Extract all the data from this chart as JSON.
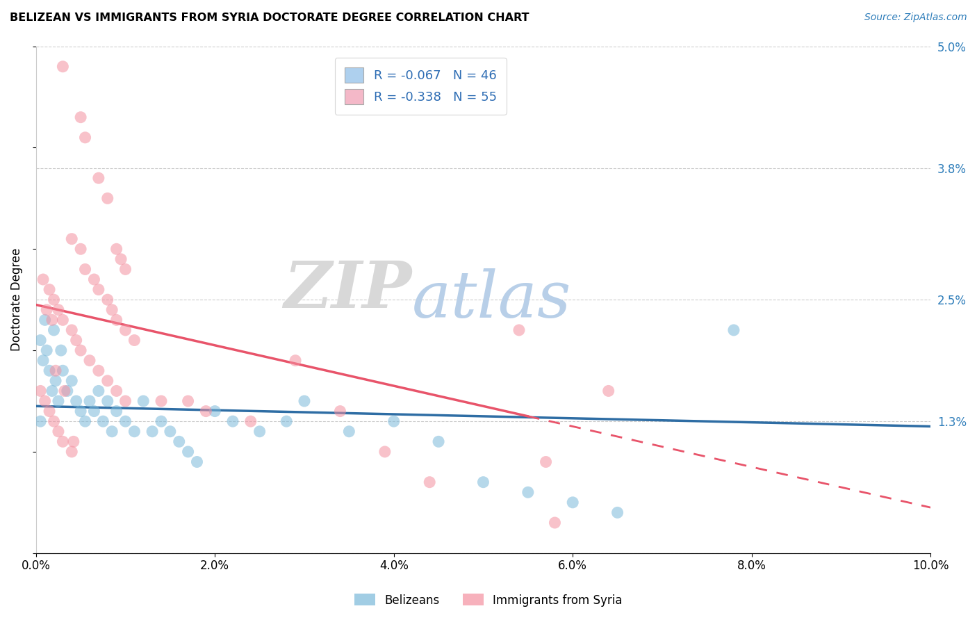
{
  "title": "BELIZEAN VS IMMIGRANTS FROM SYRIA DOCTORATE DEGREE CORRELATION CHART",
  "source": "Source: ZipAtlas.com",
  "ylabel": "Doctorate Degree",
  "xlim": [
    0.0,
    10.0
  ],
  "ylim": [
    0.0,
    5.0
  ],
  "ytick_vals": [
    0.0,
    1.3,
    2.5,
    3.8,
    5.0
  ],
  "ytick_labels": [
    "",
    "1.3%",
    "2.5%",
    "3.8%",
    "5.0%"
  ],
  "xtick_vals": [
    0,
    2,
    4,
    6,
    8,
    10
  ],
  "xtick_labels": [
    "0.0%",
    "2.0%",
    "4.0%",
    "6.0%",
    "8.0%",
    "10.0%"
  ],
  "legend_entries": [
    {
      "label_r": "R = -0.067",
      "label_n": "N = 46",
      "color": "#aed0ee"
    },
    {
      "label_r": "R = -0.338",
      "label_n": "N = 55",
      "color": "#f4b8c8"
    }
  ],
  "belizean_color": "#7ab8d9",
  "syria_color": "#f490a0",
  "trendline_belizean_color": "#2e6da4",
  "trendline_syria_color": "#e8546a",
  "watermark_zip": "ZIP",
  "watermark_atlas": "atlas",
  "belizean_N": 46,
  "syria_N": 55,
  "belizean_points": [
    [
      0.05,
      2.1
    ],
    [
      0.08,
      1.9
    ],
    [
      0.1,
      2.3
    ],
    [
      0.12,
      2.0
    ],
    [
      0.15,
      1.8
    ],
    [
      0.18,
      1.6
    ],
    [
      0.2,
      2.2
    ],
    [
      0.22,
      1.7
    ],
    [
      0.25,
      1.5
    ],
    [
      0.28,
      2.0
    ],
    [
      0.3,
      1.8
    ],
    [
      0.35,
      1.6
    ],
    [
      0.4,
      1.7
    ],
    [
      0.45,
      1.5
    ],
    [
      0.5,
      1.4
    ],
    [
      0.55,
      1.3
    ],
    [
      0.6,
      1.5
    ],
    [
      0.65,
      1.4
    ],
    [
      0.7,
      1.6
    ],
    [
      0.75,
      1.3
    ],
    [
      0.8,
      1.5
    ],
    [
      0.85,
      1.2
    ],
    [
      0.9,
      1.4
    ],
    [
      1.0,
      1.3
    ],
    [
      1.1,
      1.2
    ],
    [
      1.2,
      1.5
    ],
    [
      1.3,
      1.2
    ],
    [
      1.4,
      1.3
    ],
    [
      1.5,
      1.2
    ],
    [
      1.6,
      1.1
    ],
    [
      1.7,
      1.0
    ],
    [
      1.8,
      0.9
    ],
    [
      2.0,
      1.4
    ],
    [
      2.2,
      1.3
    ],
    [
      2.5,
      1.2
    ],
    [
      2.8,
      1.3
    ],
    [
      3.0,
      1.5
    ],
    [
      3.5,
      1.2
    ],
    [
      4.0,
      1.3
    ],
    [
      4.5,
      1.1
    ],
    [
      5.0,
      0.7
    ],
    [
      5.5,
      0.6
    ],
    [
      6.0,
      0.5
    ],
    [
      6.5,
      0.4
    ],
    [
      7.8,
      2.2
    ],
    [
      0.05,
      1.3
    ]
  ],
  "syria_points": [
    [
      0.3,
      4.8
    ],
    [
      0.5,
      4.3
    ],
    [
      0.55,
      4.1
    ],
    [
      0.7,
      3.7
    ],
    [
      0.8,
      3.5
    ],
    [
      0.9,
      3.0
    ],
    [
      0.95,
      2.9
    ],
    [
      1.0,
      2.8
    ],
    [
      0.4,
      3.1
    ],
    [
      0.5,
      3.0
    ],
    [
      0.55,
      2.8
    ],
    [
      0.65,
      2.7
    ],
    [
      0.7,
      2.6
    ],
    [
      0.8,
      2.5
    ],
    [
      0.85,
      2.4
    ],
    [
      0.9,
      2.3
    ],
    [
      1.0,
      2.2
    ],
    [
      1.1,
      2.1
    ],
    [
      0.15,
      2.6
    ],
    [
      0.2,
      2.5
    ],
    [
      0.25,
      2.4
    ],
    [
      0.3,
      2.3
    ],
    [
      0.4,
      2.2
    ],
    [
      0.45,
      2.1
    ],
    [
      0.5,
      2.0
    ],
    [
      0.6,
      1.9
    ],
    [
      0.7,
      1.8
    ],
    [
      0.8,
      1.7
    ],
    [
      0.9,
      1.6
    ],
    [
      1.0,
      1.5
    ],
    [
      0.05,
      1.6
    ],
    [
      0.1,
      1.5
    ],
    [
      0.15,
      1.4
    ],
    [
      0.2,
      1.3
    ],
    [
      0.25,
      1.2
    ],
    [
      0.3,
      1.1
    ],
    [
      0.4,
      1.0
    ],
    [
      1.4,
      1.5
    ],
    [
      1.7,
      1.5
    ],
    [
      1.9,
      1.4
    ],
    [
      2.4,
      1.3
    ],
    [
      2.9,
      1.9
    ],
    [
      3.4,
      1.4
    ],
    [
      3.9,
      1.0
    ],
    [
      4.4,
      0.7
    ],
    [
      5.4,
      2.2
    ],
    [
      5.7,
      0.9
    ],
    [
      5.8,
      0.3
    ],
    [
      6.4,
      1.6
    ],
    [
      0.08,
      2.7
    ],
    [
      0.12,
      2.4
    ],
    [
      0.18,
      2.3
    ],
    [
      0.22,
      1.8
    ],
    [
      0.32,
      1.6
    ],
    [
      0.42,
      1.1
    ]
  ],
  "trendline_bel_x0": 0.0,
  "trendline_bel_y0": 1.45,
  "trendline_bel_x1": 10.0,
  "trendline_bel_y1": 1.25,
  "trendline_syr_x0": 0.0,
  "trendline_syr_y0": 2.45,
  "trendline_syr_x1": 10.0,
  "trendline_syr_y1": 0.45,
  "trendline_syr_solid_end": 5.5
}
